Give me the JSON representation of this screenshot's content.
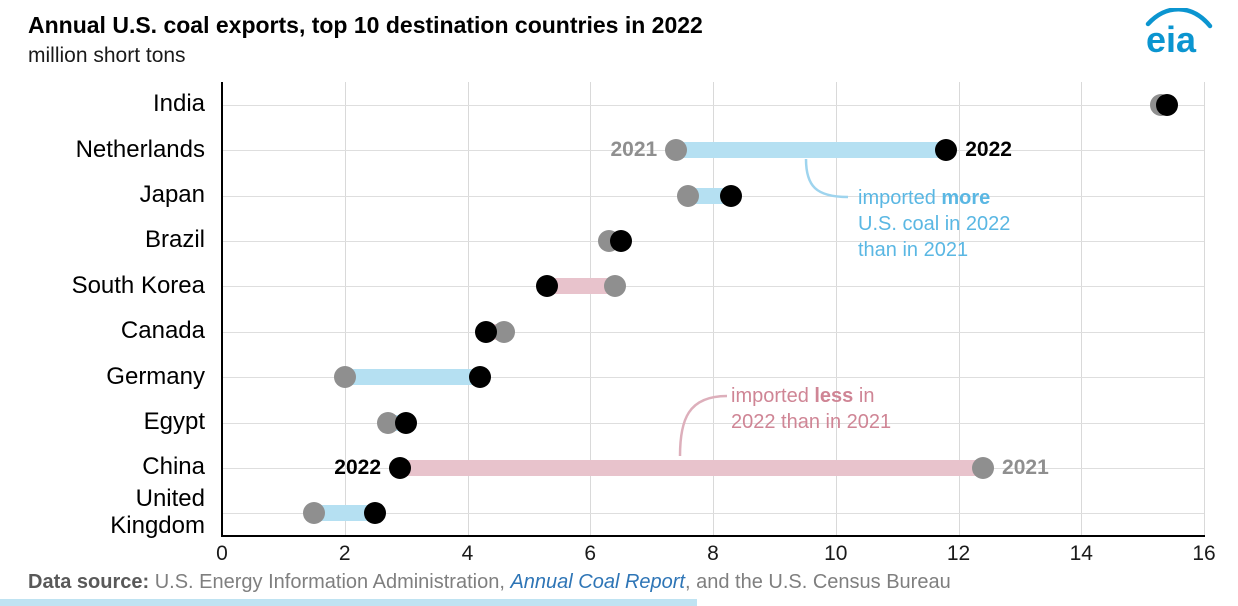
{
  "logo": {
    "text": "eia",
    "color": "#0b95d0"
  },
  "chart_data": {
    "type": "dumbbell",
    "title": "Annual U.S. coal exports, top 10 destination countries in 2022",
    "subtitle": "million short tons",
    "categories": [
      "India",
      "Netherlands",
      "Japan",
      "Brazil",
      "South Korea",
      "Canada",
      "Germany",
      "Egypt",
      "China",
      "United Kingdom"
    ],
    "category_display": [
      "India",
      "Netherlands",
      "Japan",
      "Brazil",
      "South Korea",
      "Canada",
      "Germany",
      "Egypt",
      "China",
      "United\nKingdom"
    ],
    "series": [
      {
        "name": "2021",
        "color": "#8f8f8f",
        "values": [
          15.3,
          7.4,
          7.6,
          6.3,
          6.4,
          4.6,
          2.0,
          2.7,
          12.4,
          1.5
        ]
      },
      {
        "name": "2022",
        "color": "#000000",
        "values": [
          15.4,
          11.8,
          8.3,
          6.5,
          5.3,
          4.3,
          4.2,
          3.0,
          2.9,
          2.5
        ]
      }
    ],
    "xlim": [
      0,
      16
    ],
    "xticks": [
      0,
      2,
      4,
      6,
      8,
      10,
      12,
      14,
      16
    ],
    "increase_color": "#b5e0f2",
    "decrease_color": "#e8c3cc",
    "grid": true,
    "legend_position": "inline-point-labels",
    "point_labels": [
      {
        "category": "Netherlands",
        "series": "2021",
        "side": "left"
      },
      {
        "category": "Netherlands",
        "series": "2022",
        "side": "right"
      },
      {
        "category": "China",
        "series": "2022",
        "side": "left"
      },
      {
        "category": "China",
        "series": "2021",
        "side": "right"
      }
    ]
  },
  "annotation_more": {
    "line1_pre": "imported ",
    "line1_bold": "more",
    "line2": "U.S. coal in 2022",
    "line3": "than in 2021",
    "color": "#5ab7e3",
    "curve_color": "#9ed4ee"
  },
  "annotation_less": {
    "line1_pre": "imported ",
    "line1_bold": "less",
    "line1_post": " in",
    "line2": "2022 than in 2021",
    "color": "#cf8595",
    "curve_color": "#ddafbb"
  },
  "footer": {
    "label": "Data source: ",
    "text1": "U.S. Energy Information Administration, ",
    "link": "Annual Coal Report",
    "text2": ", and the U.S. Census Bureau",
    "accent_color": "#bfe3f2"
  }
}
